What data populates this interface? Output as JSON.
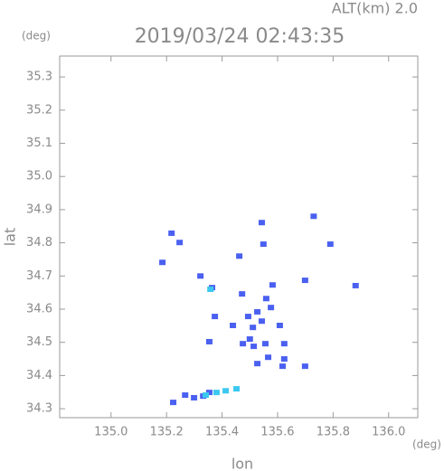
{
  "chart_data": {
    "type": "scatter",
    "title": "2019/03/24 02:43:35",
    "subtitle": "ALT(km) 2.0",
    "y_unit": "(deg)",
    "x_unit": "(deg)",
    "x_label": "lon",
    "y_label": "lat",
    "xlim": [
      134.815,
      136.105
    ],
    "ylim": [
      34.273,
      35.363
    ],
    "xticks": [
      {
        "value": 135.0,
        "label": "135.0"
      },
      135.2,
      135.4,
      135.6,
      135.8,
      {
        "value": 136.0,
        "label": "136.0"
      }
    ],
    "yticks": [
      34.3,
      34.4,
      34.5,
      34.6,
      34.7,
      34.8,
      34.9,
      {
        "value": 35.0,
        "label": "35.0"
      },
      35.1,
      35.2,
      35.3
    ],
    "series": [
      {
        "color": "#4a60f0",
        "x": [
          135.73,
          135.543,
          135.549,
          135.462,
          135.247,
          135.218,
          135.185,
          135.322,
          135.364,
          135.374,
          135.354,
          135.472,
          135.494,
          135.527,
          135.559,
          135.582,
          135.576,
          135.5,
          135.511,
          135.543,
          135.514,
          135.475,
          135.556,
          135.566,
          135.527,
          135.624,
          135.618,
          135.624,
          135.608,
          135.439,
          135.699,
          135.79,
          135.881,
          135.699,
          135.224,
          135.267,
          135.299,
          135.332,
          135.354
        ],
        "y": [
          34.88,
          34.861,
          34.796,
          34.76,
          34.801,
          34.829,
          34.741,
          34.7,
          34.665,
          34.578,
          34.502,
          34.646,
          34.578,
          34.592,
          34.632,
          34.673,
          34.605,
          34.51,
          34.545,
          34.564,
          34.488,
          34.496,
          34.496,
          34.455,
          34.436,
          34.45,
          34.428,
          34.496,
          34.551,
          34.551,
          34.428,
          34.796,
          34.671,
          34.687,
          34.319,
          34.341,
          34.333,
          34.338,
          34.349
        ]
      },
      {
        "color": "#3cc8f0",
        "x": [
          135.341,
          135.38,
          135.413,
          135.452,
          135.358
        ],
        "y": [
          34.341,
          34.349,
          34.354,
          34.36,
          34.66
        ]
      }
    ]
  }
}
